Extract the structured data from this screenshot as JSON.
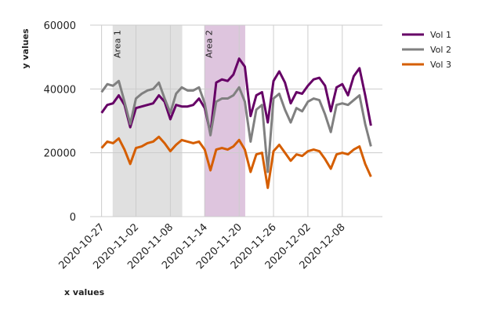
{
  "chart_data": {
    "type": "line",
    "xlabel": "x values",
    "ylabel": "y values",
    "x": [
      "2020-10-27",
      "2020-10-28",
      "2020-10-29",
      "2020-10-30",
      "2020-10-31",
      "2020-11-01",
      "2020-11-02",
      "2020-11-03",
      "2020-11-04",
      "2020-11-05",
      "2020-11-06",
      "2020-11-07",
      "2020-11-08",
      "2020-11-09",
      "2020-11-10",
      "2020-11-11",
      "2020-11-12",
      "2020-11-13",
      "2020-11-14",
      "2020-11-15",
      "2020-11-16",
      "2020-11-17",
      "2020-11-18",
      "2020-11-19",
      "2020-11-20",
      "2020-11-21",
      "2020-11-22",
      "2020-11-23",
      "2020-11-24",
      "2020-11-25",
      "2020-11-26",
      "2020-11-27",
      "2020-11-28",
      "2020-11-29",
      "2020-11-30",
      "2020-12-01",
      "2020-12-02",
      "2020-12-03",
      "2020-12-04",
      "2020-12-05",
      "2020-12-06",
      "2020-12-07",
      "2020-12-08",
      "2020-12-09",
      "2020-12-10",
      "2020-12-11",
      "2020-12-12",
      "2020-12-13"
    ],
    "series": [
      {
        "name": "Vol 1",
        "color": "#660066",
        "values": [
          32500,
          35000,
          35500,
          38000,
          35000,
          28000,
          34000,
          34500,
          35000,
          35500,
          38000,
          36000,
          30500,
          35000,
          34500,
          34500,
          35000,
          37000,
          34000,
          26000,
          42000,
          43000,
          42500,
          44500,
          49500,
          47000,
          31500,
          38000,
          39000,
          29500,
          42500,
          45500,
          42000,
          35500,
          39000,
          38500,
          41000,
          43000,
          43500,
          41000,
          33000,
          40500,
          41500,
          38000,
          44000,
          46500,
          38000,
          28500
        ]
      },
      {
        "name": "Vol 2",
        "color": "#808080",
        "values": [
          39000,
          41500,
          41000,
          42500,
          36000,
          29000,
          37000,
          38500,
          39500,
          40000,
          42000,
          37000,
          32500,
          38500,
          40500,
          39500,
          39500,
          40500,
          35500,
          25500,
          36000,
          37000,
          37000,
          38000,
          40500,
          36000,
          23500,
          33500,
          35000,
          14000,
          37000,
          38500,
          33500,
          29500,
          34000,
          33000,
          36000,
          37000,
          36500,
          32000,
          26500,
          35000,
          35500,
          35000,
          36500,
          38000,
          29000,
          22000
        ]
      },
      {
        "name": "Vol 3",
        "color": "#d55e00",
        "values": [
          21500,
          23500,
          23000,
          24500,
          21000,
          16500,
          21500,
          22000,
          23000,
          23500,
          25000,
          23000,
          20500,
          22500,
          24000,
          23500,
          23000,
          23500,
          21000,
          14500,
          21000,
          21500,
          21000,
          22000,
          24000,
          21000,
          14000,
          19500,
          20000,
          9000,
          20500,
          22500,
          20000,
          17500,
          19500,
          19000,
          20500,
          21000,
          20500,
          18000,
          15000,
          19500,
          20000,
          19500,
          21000,
          22000,
          16500,
          12500
        ]
      }
    ],
    "spans": [
      {
        "label": "Area 1",
        "start": "2020-10-29",
        "end": "2020-11-10",
        "color": "#cccccc"
      },
      {
        "label": "Area 2",
        "start": "2020-11-14",
        "end": "2020-11-21",
        "color": "#c9a0c9"
      }
    ],
    "xlim": [
      "2020-10-25",
      "2020-12-15"
    ],
    "xticks": [
      "2020-10-27",
      "2020-11-02",
      "2020-11-08",
      "2020-11-14",
      "2020-11-20",
      "2020-11-26",
      "2020-12-02",
      "2020-12-08"
    ],
    "ylim": [
      0,
      60000
    ],
    "yticks": [
      0,
      20000,
      40000,
      60000
    ],
    "grid": true,
    "legend": "upper right outside"
  }
}
